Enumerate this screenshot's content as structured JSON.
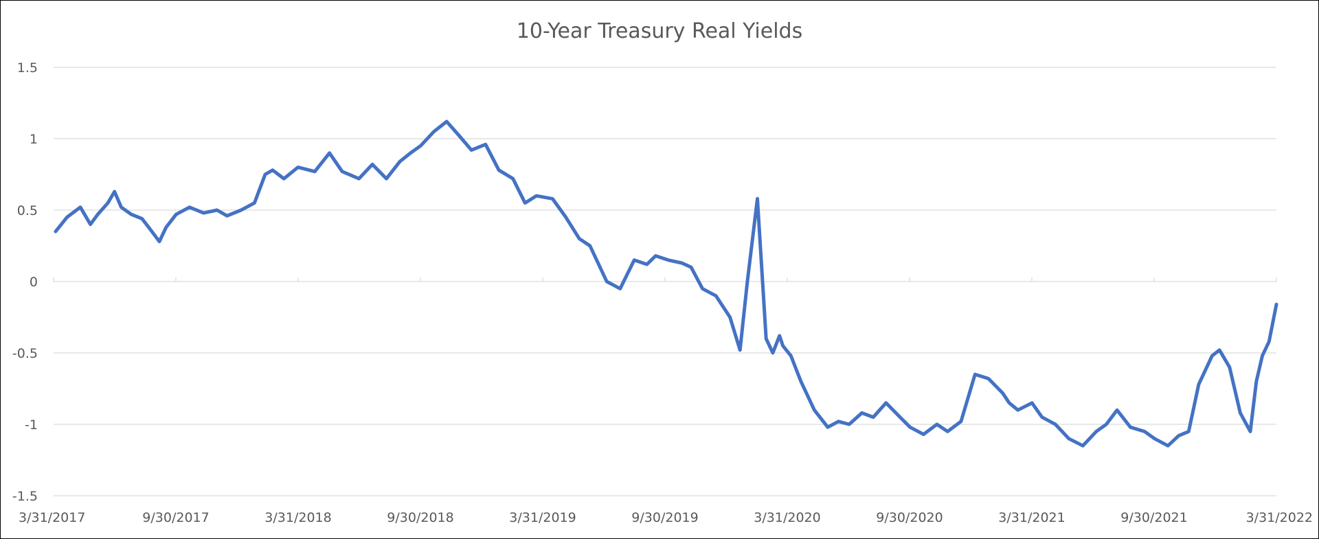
{
  "chart_data": {
    "type": "line",
    "title": "10-Year Treasury Real Yields",
    "xlabel": "",
    "ylabel": "",
    "ylim": [
      -1.5,
      1.5
    ],
    "y_ticks": [
      "1.5",
      "1",
      "0.5",
      "0",
      "-0.5",
      "-1",
      "-1.5"
    ],
    "y_tick_values": [
      1.5,
      1,
      0.5,
      0,
      -0.5,
      -1,
      -1.5
    ],
    "x_ticks": [
      "3/31/2017",
      "9/30/2017",
      "3/31/2018",
      "9/30/2018",
      "3/31/2019",
      "9/30/2019",
      "3/31/2020",
      "9/30/2020",
      "3/31/2021",
      "9/30/2021",
      "3/31/2022"
    ],
    "grid": true,
    "line_color": "#4472C4",
    "grid_color": "#D9D9D9",
    "series": [
      {
        "x": [
          "2017-04-03",
          "2017-04-20",
          "2017-05-10",
          "2017-05-25",
          "2017-06-05",
          "2017-06-20",
          "2017-06-30",
          "2017-07-10",
          "2017-07-25",
          "2017-08-10",
          "2017-08-20",
          "2017-09-05",
          "2017-09-15",
          "2017-09-30",
          "2017-10-20",
          "2017-11-10",
          "2017-11-30",
          "2017-12-15",
          "2018-01-05",
          "2018-01-25",
          "2018-02-10",
          "2018-02-21",
          "2018-03-10",
          "2018-03-31",
          "2018-04-25",
          "2018-05-17",
          "2018-06-05",
          "2018-06-30",
          "2018-07-20",
          "2018-08-10",
          "2018-08-30",
          "2018-09-15",
          "2018-09-30",
          "2018-10-20",
          "2018-11-08",
          "2018-11-25",
          "2018-12-15",
          "2019-01-05",
          "2019-01-25",
          "2019-02-15",
          "2019-03-05",
          "2019-03-22",
          "2019-04-15",
          "2019-05-05",
          "2019-05-25",
          "2019-06-10",
          "2019-07-05",
          "2019-07-25",
          "2019-08-15",
          "2019-09-03",
          "2019-09-16",
          "2019-10-05",
          "2019-10-25",
          "2019-11-08",
          "2019-11-25",
          "2019-12-15",
          "2020-01-05",
          "2020-01-20",
          "2020-01-31",
          "2020-02-15",
          "2020-02-28",
          "2020-03-09",
          "2020-03-19",
          "2020-03-24",
          "2020-04-05",
          "2020-04-20",
          "2020-05-10",
          "2020-05-30",
          "2020-06-15",
          "2020-07-01",
          "2020-07-20",
          "2020-08-06",
          "2020-08-25",
          "2020-09-15",
          "2020-09-30",
          "2020-10-20",
          "2020-11-09",
          "2020-11-25",
          "2020-12-15",
          "2021-01-05",
          "2021-01-25",
          "2021-02-15",
          "2021-02-25",
          "2021-03-10",
          "2021-03-31",
          "2021-04-15",
          "2021-05-05",
          "2021-05-25",
          "2021-06-15",
          "2021-07-05",
          "2021-07-20",
          "2021-08-05",
          "2021-08-25",
          "2021-09-15",
          "2021-09-30",
          "2021-10-20",
          "2021-11-05",
          "2021-11-20",
          "2021-12-05",
          "2021-12-25",
          "2022-01-05",
          "2022-01-20",
          "2022-02-05",
          "2022-02-20",
          "2022-03-01",
          "2022-03-10",
          "2022-03-20",
          "2022-03-31"
        ],
        "y": [
          0.35,
          0.45,
          0.52,
          0.4,
          0.47,
          0.55,
          0.63,
          0.52,
          0.47,
          0.44,
          0.38,
          0.28,
          0.38,
          0.47,
          0.52,
          0.48,
          0.5,
          0.46,
          0.5,
          0.55,
          0.75,
          0.78,
          0.72,
          0.8,
          0.77,
          0.9,
          0.77,
          0.72,
          0.82,
          0.72,
          0.84,
          0.9,
          0.95,
          1.05,
          1.12,
          1.03,
          0.92,
          0.96,
          0.78,
          0.72,
          0.55,
          0.6,
          0.58,
          0.45,
          0.3,
          0.25,
          0.0,
          -0.05,
          0.15,
          0.12,
          0.18,
          0.15,
          0.13,
          0.1,
          -0.05,
          -0.1,
          -0.25,
          -0.48,
          0.0,
          0.58,
          -0.4,
          -0.5,
          -0.38,
          -0.45,
          -0.52,
          -0.7,
          -0.9,
          -1.02,
          -0.98,
          -1.0,
          -0.92,
          -0.95,
          -0.85,
          -0.95,
          -1.02,
          -1.07,
          -1.0,
          -1.05,
          -0.98,
          -0.65,
          -0.68,
          -0.78,
          -0.85,
          -0.9,
          -0.85,
          -0.95,
          -1.0,
          -1.1,
          -1.15,
          -1.05,
          -1.0,
          -0.9,
          -1.02,
          -1.05,
          -1.1,
          -1.15,
          -1.08,
          -1.05,
          -0.72,
          -0.52,
          -0.48,
          -0.6,
          -0.92,
          -1.05,
          -0.7,
          -0.52,
          -0.42,
          -0.16
        ]
      }
    ]
  }
}
